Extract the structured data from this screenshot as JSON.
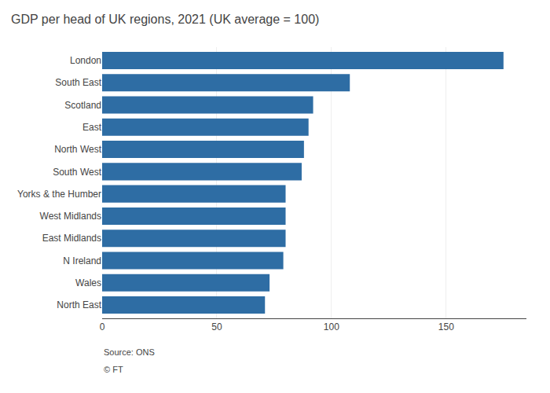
{
  "chart_data": {
    "type": "bar",
    "orientation": "horizontal",
    "title": "GDP per head of UK regions, 2021 (UK average = 100)",
    "categories": [
      "North East",
      "Wales",
      "N Ireland",
      "East Midlands",
      "West Midlands",
      "Yorks & the Humber",
      "South West",
      "North West",
      "East",
      "Scotland",
      "South East",
      "London"
    ],
    "values": [
      71,
      73,
      79,
      80,
      80,
      80,
      87,
      88,
      90,
      92,
      108,
      175
    ],
    "color": "#2e6da4",
    "xlim": [
      0,
      185
    ],
    "xticks": [
      0,
      50,
      100,
      150
    ],
    "grid": true,
    "annotations": [
      "Source: ONS",
      "© FT"
    ]
  }
}
